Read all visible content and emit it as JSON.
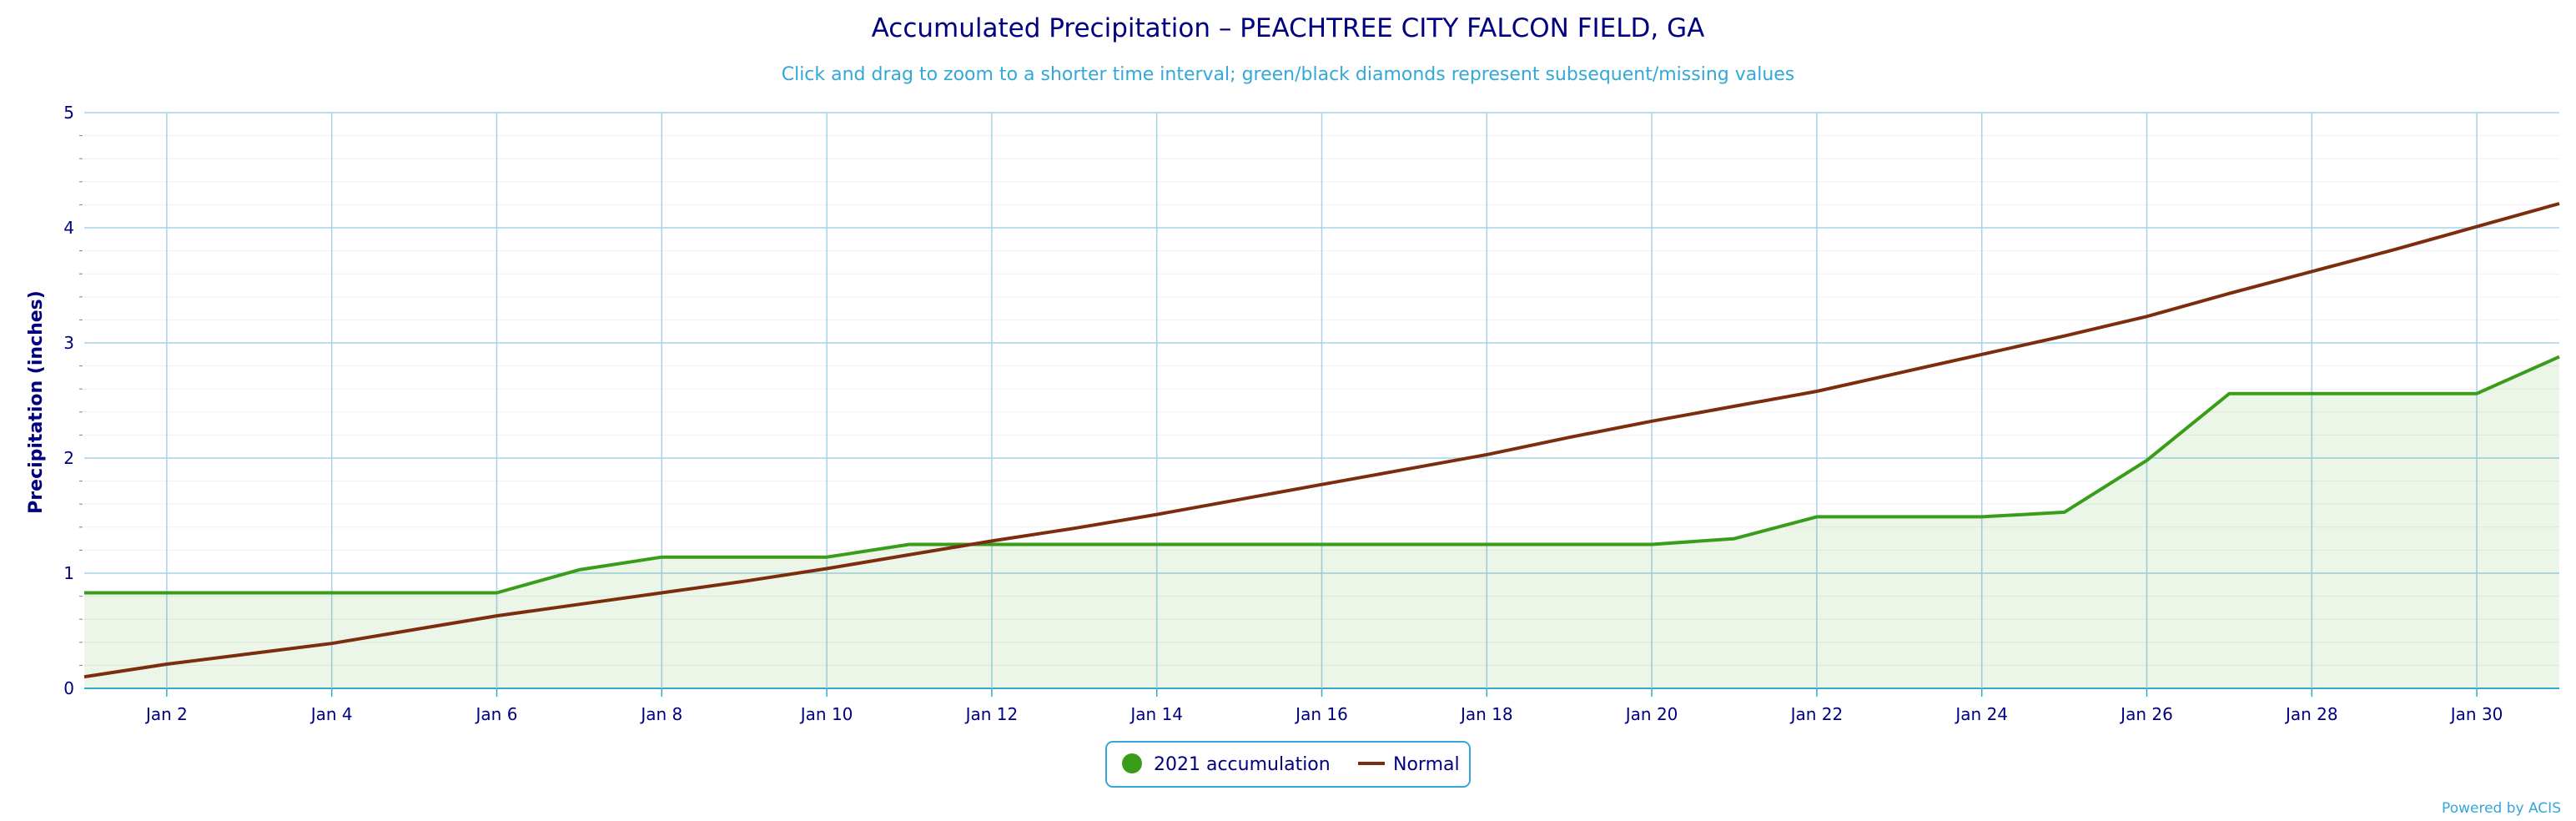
{
  "chart_data": {
    "type": "line",
    "title": "Accumulated Precipitation – PEACHTREE CITY FALCON FIELD, GA",
    "subtitle": "Click and drag to zoom to a shorter time interval; green/black diamonds represent subsequent/missing values",
    "ylabel": "Precipitation (inches)",
    "xlabel": "",
    "x_days": [
      1,
      2,
      3,
      4,
      5,
      6,
      7,
      8,
      9,
      10,
      11,
      12,
      13,
      14,
      15,
      16,
      17,
      18,
      19,
      20,
      21,
      22,
      23,
      24,
      25,
      26,
      27,
      28,
      29,
      30,
      31
    ],
    "x_tick_labels": [
      "Jan 2",
      "Jan 4",
      "Jan 6",
      "Jan 8",
      "Jan 10",
      "Jan 12",
      "Jan 14",
      "Jan 16",
      "Jan 18",
      "Jan 20",
      "Jan 22",
      "Jan 24",
      "Jan 26",
      "Jan 28",
      "Jan 30"
    ],
    "y_ticks": [
      "0",
      "1",
      "2",
      "3",
      "4",
      "5"
    ],
    "ylim": [
      0,
      5
    ],
    "grid": true,
    "legend_position": "bottom-center",
    "series": [
      {
        "name": "2021 accumulation",
        "color": "#3a9d1a",
        "fill": true,
        "values": [
          0.83,
          0.83,
          0.83,
          0.83,
          0.83,
          0.83,
          1.03,
          1.14,
          1.14,
          1.14,
          1.25,
          1.25,
          1.25,
          1.25,
          1.25,
          1.25,
          1.25,
          1.25,
          1.25,
          1.25,
          1.3,
          1.49,
          1.49,
          1.49,
          1.53,
          1.98,
          2.56,
          2.56,
          2.56,
          2.56,
          2.88
        ]
      },
      {
        "name": "Normal",
        "color": "#7b2d0e",
        "fill": false,
        "values": [
          0.1,
          0.21,
          0.3,
          0.39,
          0.51,
          0.63,
          0.73,
          0.83,
          0.93,
          1.04,
          1.16,
          1.28,
          1.39,
          1.51,
          1.64,
          1.77,
          1.9,
          2.03,
          2.18,
          2.32,
          2.45,
          2.58,
          2.74,
          2.9,
          3.06,
          3.23,
          3.43,
          3.62,
          3.81,
          4.01,
          4.21
        ]
      }
    ]
  },
  "credit": "Powered by ACIS"
}
